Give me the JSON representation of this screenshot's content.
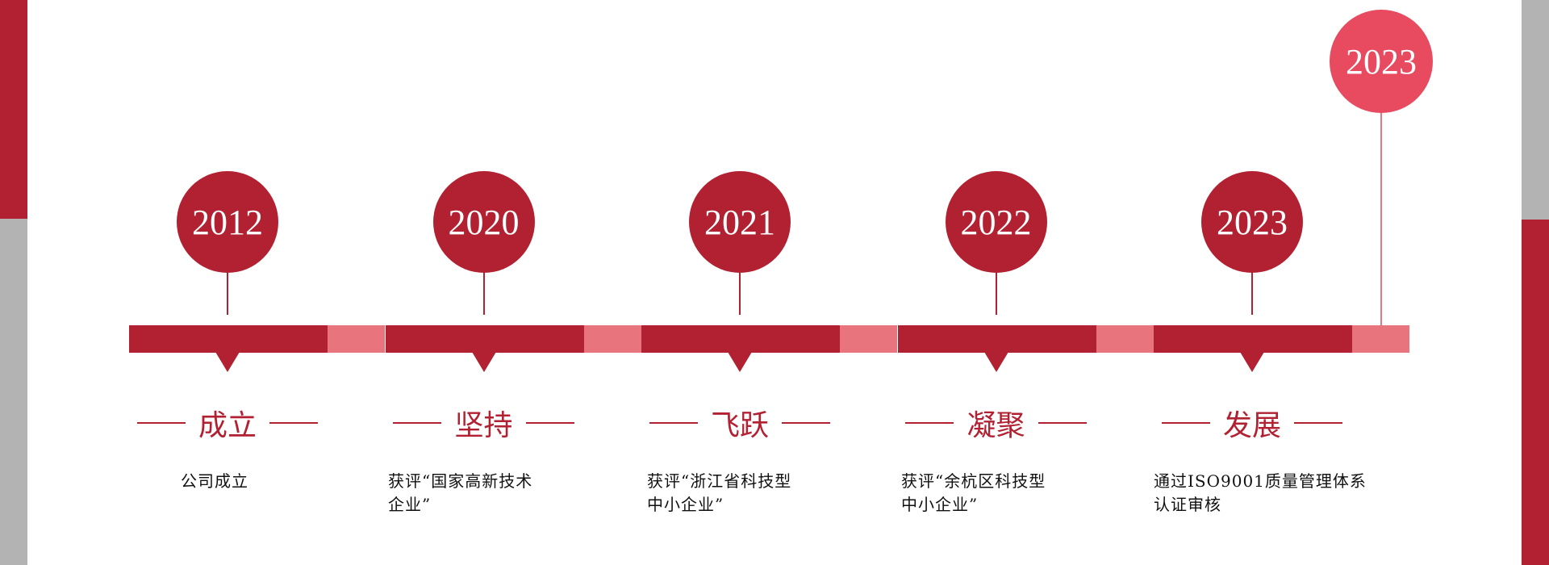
{
  "colors": {
    "primary": "#b22131",
    "accent": "#e84a5f",
    "segment_light": "#e8747e",
    "side_gray": "#b3b3b3"
  },
  "milestones": [
    {
      "year": "2012",
      "title": "成立",
      "desc": [
        "公司成立"
      ]
    },
    {
      "year": "2020",
      "title": "坚持",
      "desc": [
        "获评“国家高新技术",
        "企业”"
      ]
    },
    {
      "year": "2021",
      "title": "飞跃",
      "desc": [
        "获评“浙江省科技型",
        "中小企业”"
      ]
    },
    {
      "year": "2022",
      "title": "凝聚",
      "desc": [
        "获评“余杭区科技型",
        "中小企业”"
      ]
    },
    {
      "year": "2023",
      "title": "发展",
      "desc": [
        "通过ISO9001质量管理体系",
        "认证审核"
      ]
    }
  ],
  "highlight": {
    "year": "2023"
  }
}
